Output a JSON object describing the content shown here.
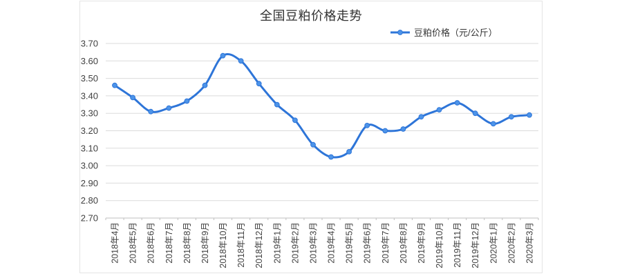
{
  "chart": {
    "title": "全国豆粕价格走势",
    "legend": {
      "label": "豆粕价格（元/公斤）"
    }
  },
  "chart_data": {
    "type": "line",
    "title": "全国豆粕价格走势",
    "smoothed": true,
    "grid": "horizontal",
    "legend_position": "top-right",
    "xlabel": "",
    "ylabel": "",
    "categories": [
      "2018年4月",
      "2018年5月",
      "2018年6月",
      "2018年7月",
      "2018年8月",
      "2018年9月",
      "2018年10月",
      "2018年11月",
      "2018年12月",
      "2019年1月",
      "2019年2月",
      "2019年3月",
      "2019年4月",
      "2019年5月",
      "2019年6月",
      "2019年7月",
      "2019年8月",
      "2019年9月",
      "2019年10月",
      "2019年11月",
      "2019年12月",
      "2020年1月",
      "2020年2月",
      "2020年3月"
    ],
    "series": [
      {
        "name": "豆粕价格（元/公斤）",
        "values": [
          3.46,
          3.39,
          3.31,
          3.33,
          3.37,
          3.46,
          3.63,
          3.6,
          3.47,
          3.35,
          3.26,
          3.12,
          3.05,
          3.08,
          3.23,
          3.2,
          3.21,
          3.28,
          3.32,
          3.36,
          3.3,
          3.24,
          3.28,
          3.29
        ],
        "color": "#2e75d8",
        "marker": "circle"
      }
    ],
    "ylim": [
      2.7,
      3.7
    ],
    "ytick_step": 0.1,
    "ytick_labels": [
      "3.70",
      "3.60",
      "3.50",
      "3.40",
      "3.30",
      "3.20",
      "3.10",
      "3.00",
      "2.90",
      "2.80",
      "2.70"
    ],
    "colors": {
      "line": "#2e75d8",
      "marker_fill": "#4d94e9",
      "grid": "#dbdbdb",
      "axis": "#bfbfbf",
      "text": "#404040",
      "title": "#303030",
      "frame": "#e4e4e4"
    }
  }
}
